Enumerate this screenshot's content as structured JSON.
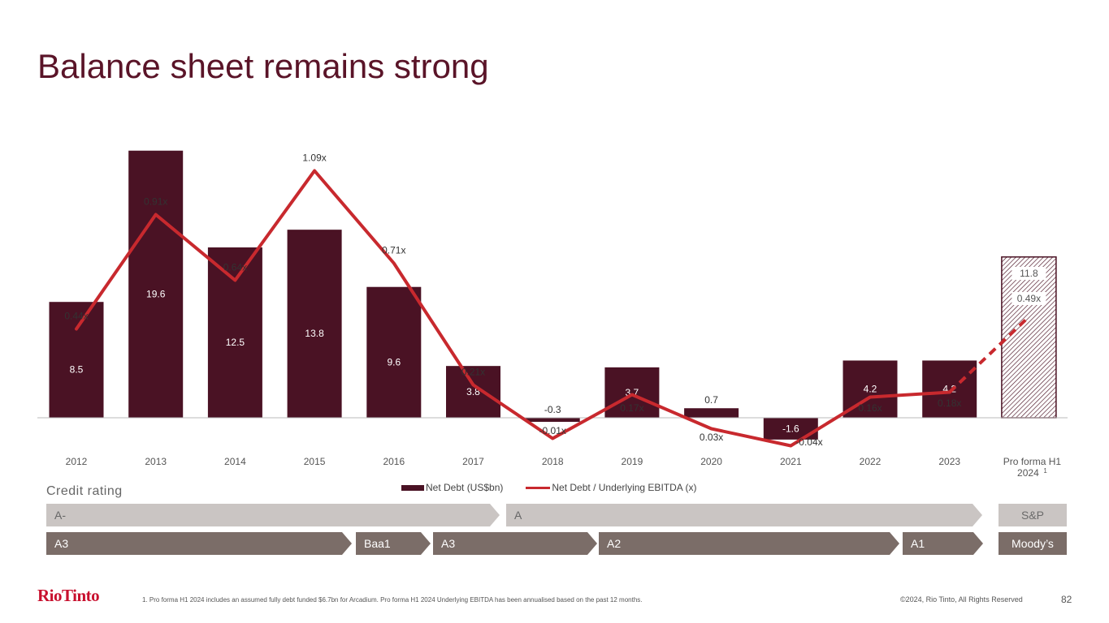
{
  "title": "Balance sheet remains strong",
  "chart_data": {
    "type": "bar",
    "categories": [
      "2012",
      "2013",
      "2014",
      "2015",
      "2016",
      "2017",
      "2018",
      "2019",
      "2020",
      "2021",
      "2022",
      "2023",
      "Pro forma H1 2024"
    ],
    "category_superscript_last": "1",
    "series": [
      {
        "name": "Net Debt (US$bn)",
        "type": "bar",
        "color": "#4a1224",
        "values": [
          8.5,
          19.6,
          12.5,
          13.8,
          9.6,
          3.8,
          -0.3,
          3.7,
          0.7,
          -1.6,
          4.2,
          4.2,
          11.8
        ],
        "labels": [
          "8.5",
          "19.6",
          "12.5",
          "13.8",
          "9.6",
          "3.8",
          "-0.3",
          "3.7",
          "0.7",
          "-1.6",
          "4.2",
          "4.2",
          "11.8"
        ],
        "last_hatched": true
      },
      {
        "name": "Net Debt / Underlying EBITDA (x)",
        "type": "line",
        "color": "#c8292e",
        "values": [
          0.44,
          0.91,
          0.64,
          1.09,
          0.71,
          0.21,
          -0.01,
          0.17,
          0.03,
          -0.04,
          0.16,
          0.18,
          0.49
        ],
        "labels": [
          "0.44x",
          "0.91x",
          "0.64x",
          "1.09x",
          "0.71x",
          "0.21x",
          "-0.01x",
          "0.17x",
          "0.03x",
          "-0.04x",
          "0.16x",
          "0.18x",
          "0.49x"
        ],
        "last_segment_dashed": true
      }
    ],
    "legend_position": "bottom-center",
    "ylim_bar": [
      -2,
      20
    ],
    "ylim_line": [
      -0.05,
      1.15
    ]
  },
  "credit": {
    "title": "Credit rating",
    "sp_label": "S&P",
    "moody_label": "Moody’s",
    "sp_arrows": [
      "A-",
      "A"
    ],
    "moody_arrows": [
      "A3",
      "Baa1",
      "A3",
      "A2",
      "A1"
    ]
  },
  "footer": {
    "logo": "RioTinto",
    "footnote": "1. Pro forma H1 2024 includes an assumed fully debt funded $6.7bn for Arcadium. Pro forma H1 2024 Underlying EBITDA has been annualised based on the past 12 months.",
    "copyright": "©2024, Rio Tinto, All Rights Reserved",
    "page": "82"
  }
}
